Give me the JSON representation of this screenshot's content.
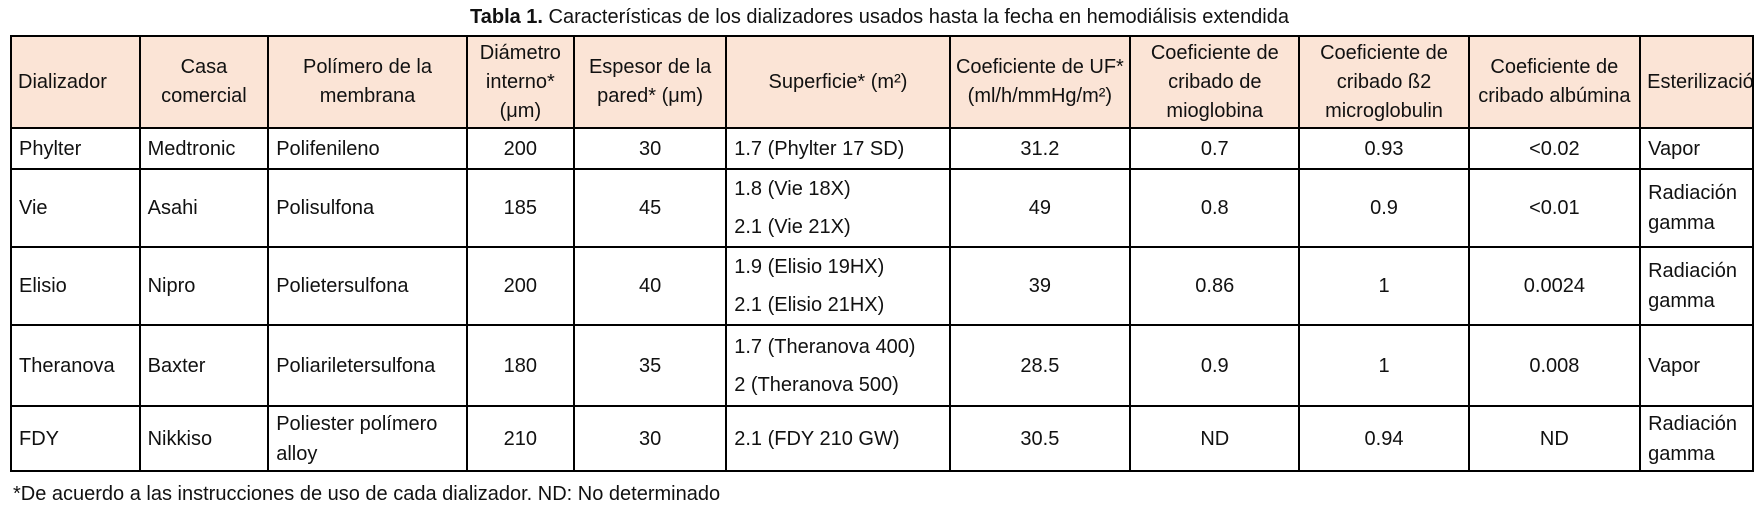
{
  "caption": {
    "label": "Tabla 1.",
    "text": " Características de los dializadores usados hasta la fecha en hemodiálisis extendida"
  },
  "table": {
    "headers": [
      "Dializador",
      "Casa comercial",
      "Polímero de la membrana",
      "Diámetro interno* (μm)",
      "Espesor de la pared*  (μm)",
      "Superficie* (m²)",
      "Coeficiente de UF* (ml/h/mmHg/m²)",
      "Coeficiente de cribado de mioglobina",
      "Coeficiente de cribado ß2 microglobulin",
      "Coeficiente de cribado albúmina",
      "Esterilización"
    ],
    "rows": [
      {
        "dializador": "Phylter",
        "casa": "Medtronic",
        "polimero": "Polifenileno",
        "diametro": "200",
        "espesor": "30",
        "superficie": [
          "1.7 (Phylter 17 SD)"
        ],
        "uf": "31.2",
        "mioglobina": "0.7",
        "b2": "0.93",
        "albumina": "<0.02",
        "esterilizacion": "Vapor"
      },
      {
        "dializador": "Vie",
        "casa": "Asahi",
        "polimero": "Polisulfona",
        "diametro": "185",
        "espesor": "45",
        "superficie": [
          "1.8 (Vie 18X)",
          "2.1 (Vie 21X)"
        ],
        "uf": "49",
        "mioglobina": "0.8",
        "b2": "0.9",
        "albumina": "<0.01",
        "esterilizacion": "Radiación gamma"
      },
      {
        "dializador": "Elisio",
        "casa": "Nipro",
        "polimero": "Polietersulfona",
        "diametro": "200",
        "espesor": "40",
        "superficie": [
          "1.9 (Elisio 19HX)",
          "2.1 (Elisio 21HX)"
        ],
        "uf": "39",
        "mioglobina": "0.86",
        "b2": "1",
        "albumina": "0.0024",
        "esterilizacion": "Radiación gamma"
      },
      {
        "dializador": "Theranova",
        "casa": "Baxter",
        "polimero": "Poliariletersulfona",
        "diametro": "180",
        "espesor": "35",
        "superficie": [
          "1.7  (Theranova 400)",
          "2 (Theranova 500)"
        ],
        "uf": "28.5",
        "mioglobina": "0.9",
        "b2": "1",
        "albumina": "0.008",
        "esterilizacion": "Vapor"
      },
      {
        "dializador": "FDY",
        "casa": "Nikkiso",
        "polimero": "Poliester polímero alloy",
        "diametro": "210",
        "espesor": "30",
        "superficie": [
          "2.1 (FDY 210 GW)"
        ],
        "uf": "30.5",
        "mioglobina": "ND",
        "b2": "0.94",
        "albumina": "ND",
        "esterilizacion": "Radiación gamma"
      }
    ]
  },
  "footnote": "*De acuerdo a las instrucciones de uso de cada dializador. ND: No determinado",
  "colors": {
    "header_background": "#fbe4d6",
    "border": "#000000",
    "text": "#111111"
  }
}
